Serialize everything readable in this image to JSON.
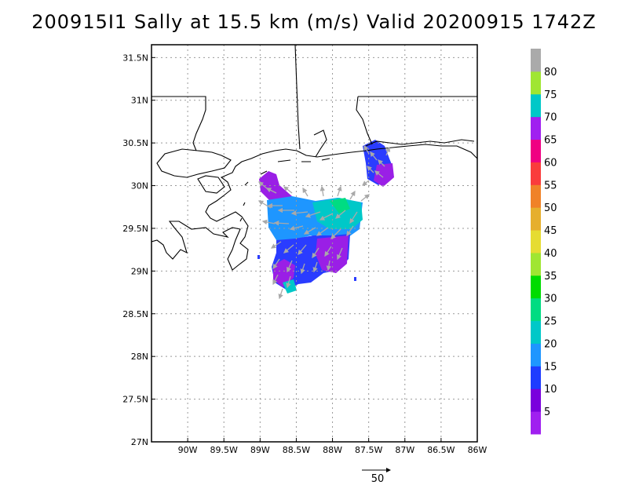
{
  "title": "200915I1 Sally at 15.5 km (m/s) Valid 20200915 1742Z",
  "axes": {
    "lon_min": -90.5,
    "lon_max": -86.0,
    "lat_min": 27.0,
    "lat_max": 31.65,
    "x_ticks": [
      {
        "value": -90.0,
        "label": "90W"
      },
      {
        "value": -89.5,
        "label": "89.5W"
      },
      {
        "value": -89.0,
        "label": "89W"
      },
      {
        "value": -88.5,
        "label": "88.5W"
      },
      {
        "value": -88.0,
        "label": "88W"
      },
      {
        "value": -87.5,
        "label": "87.5W"
      },
      {
        "value": -87.0,
        "label": "87W"
      },
      {
        "value": -86.5,
        "label": "86.5W"
      },
      {
        "value": -86.0,
        "label": "86W"
      }
    ],
    "y_ticks": [
      {
        "value": 27.0,
        "label": "27N"
      },
      {
        "value": 27.5,
        "label": "27.5N"
      },
      {
        "value": 28.0,
        "label": "28N"
      },
      {
        "value": 28.5,
        "label": "28.5N"
      },
      {
        "value": 29.0,
        "label": "29N"
      },
      {
        "value": 29.5,
        "label": "29.5N"
      },
      {
        "value": 30.0,
        "label": "30N"
      },
      {
        "value": 30.5,
        "label": "30.5N"
      },
      {
        "value": 31.0,
        "label": "31N"
      },
      {
        "value": 31.5,
        "label": "31.5N"
      }
    ],
    "grid": true
  },
  "colorbar": {
    "colors": [
      "#a020f0",
      "#7a00dd",
      "#1e3cff",
      "#1e96ff",
      "#00c8c8",
      "#00dc82",
      "#00dc00",
      "#a0e632",
      "#e6dc32",
      "#e6af2d",
      "#f08228",
      "#fa3c3c",
      "#f00082",
      "#a020f0",
      "#00c8c8",
      "#a0e632",
      "#aaaaaa"
    ],
    "labels": [
      "5",
      "10",
      "15",
      "20",
      "25",
      "30",
      "35",
      "40",
      "45",
      "50",
      "55",
      "60",
      "65",
      "70",
      "75",
      "80"
    ]
  },
  "reference_vector": {
    "label": "50"
  },
  "chart_data": {
    "type": "heatmap",
    "title": "200915I1 Sally at 15.5 km (m/s) Valid 20200915 1742Z",
    "xlim": [
      -90.5,
      -86.0
    ],
    "ylim": [
      27.0,
      31.65
    ],
    "field": "wind speed (m/s)",
    "regions": [
      {
        "lon": -88.55,
        "lat": 29.95,
        "speed": 5
      },
      {
        "lon": -88.4,
        "lat": 29.6,
        "speed": 18
      },
      {
        "lon": -88.1,
        "lat": 29.55,
        "speed": 22
      },
      {
        "lon": -87.75,
        "lat": 29.6,
        "speed": 25
      },
      {
        "lon": -88.45,
        "lat": 29.2,
        "speed": 10
      },
      {
        "lon": -87.95,
        "lat": 29.2,
        "speed": 5
      },
      {
        "lon": -88.55,
        "lat": 28.95,
        "speed": 15
      },
      {
        "lon": -87.35,
        "lat": 30.3,
        "speed": 10
      },
      {
        "lon": -87.2,
        "lat": 30.1,
        "speed": 5
      }
    ],
    "vectors_shown": true
  }
}
